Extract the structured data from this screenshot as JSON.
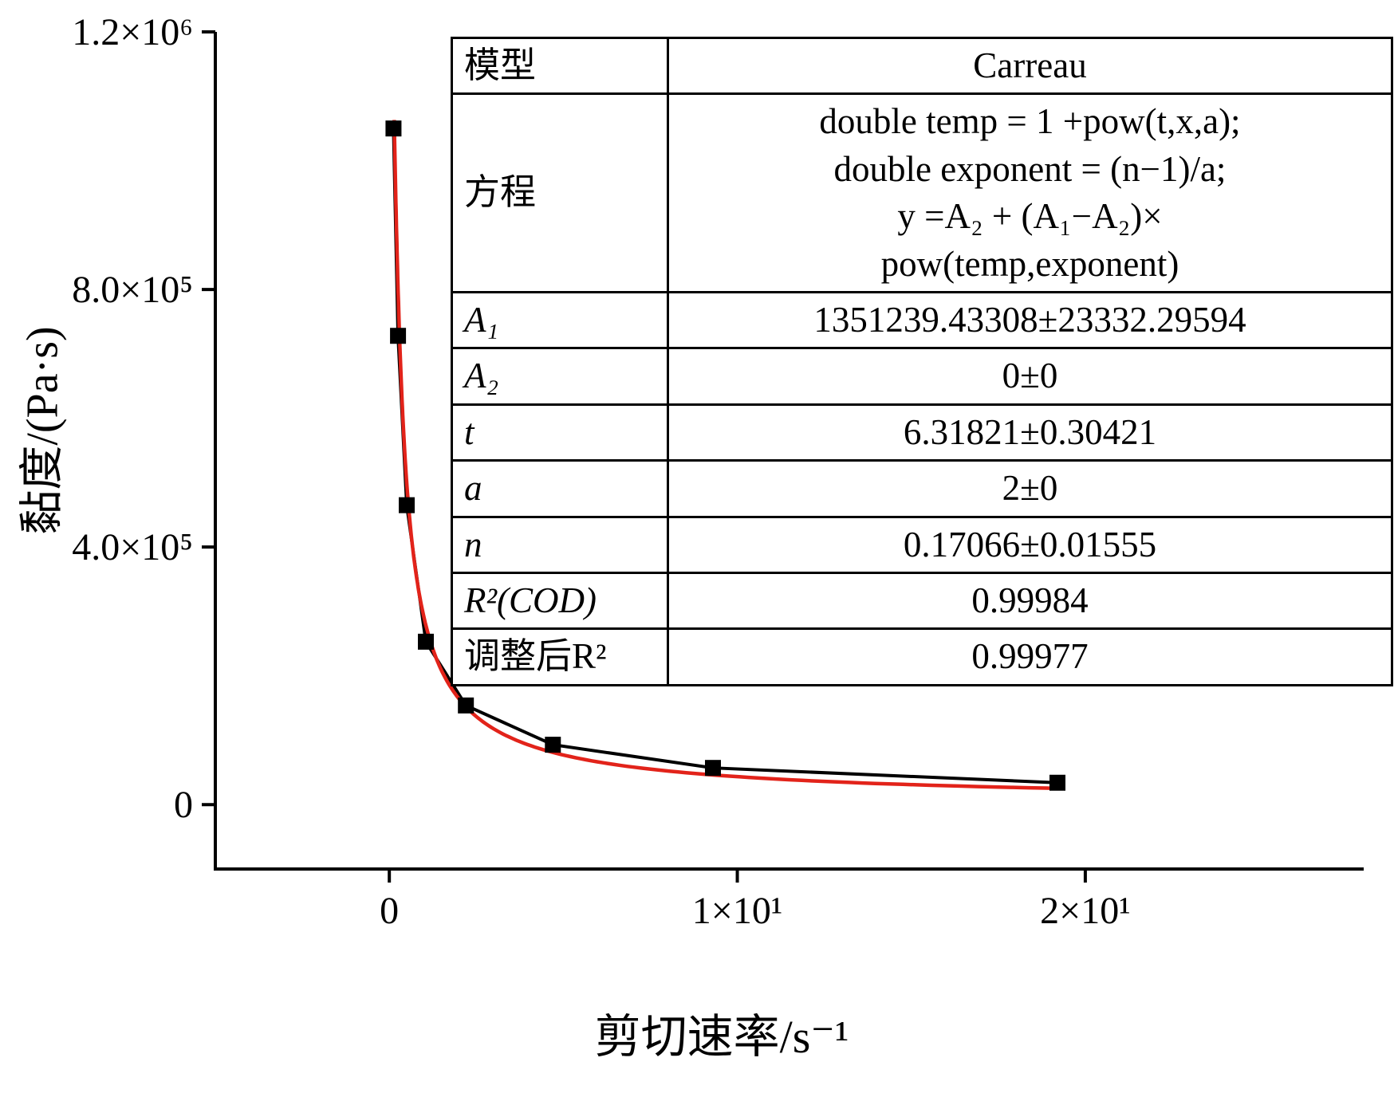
{
  "colors": {
    "axis": "#000000",
    "data_series": "#000000",
    "fit_curve": "#e2231a",
    "table_border": "#000000",
    "background": "#ffffff"
  },
  "table": {
    "rows": [
      {
        "label": "模型",
        "label_italic": false,
        "value": "Carreau"
      },
      {
        "label": "方程",
        "label_italic": false,
        "lines": [
          "double temp = 1 +pow(t,x,a);",
          "double exponent = (n−1)/a;",
          "y =A₂ + (A₁−A₂)×",
          "pow(temp,exponent)"
        ]
      },
      {
        "label": "A₁",
        "label_italic": true,
        "value": "1351239.43308±23332.29594"
      },
      {
        "label": "A₂",
        "label_italic": true,
        "value": "0±0"
      },
      {
        "label": "t",
        "label_italic": true,
        "value": "6.31821±0.30421"
      },
      {
        "label": "a",
        "label_italic": true,
        "value": "2±0"
      },
      {
        "label": "n",
        "label_italic": true,
        "value": "0.17066±0.01555"
      },
      {
        "label": "R²(COD)",
        "label_italic": true,
        "value": "0.99984"
      },
      {
        "label": "调整后R²",
        "label_italic": false,
        "value": "0.99977"
      }
    ]
  },
  "chart_data": {
    "type": "scatter",
    "title": "",
    "xlabel": "剪切速率/s⁻¹",
    "ylabel": "黏度/(Pa·s)",
    "xlim": [
      -5,
      28
    ],
    "ylim": [
      -100000,
      1200000
    ],
    "grid": false,
    "legend": "none",
    "xticks": [
      {
        "v": 0,
        "label": "0"
      },
      {
        "v": 10,
        "label": "1×10¹"
      },
      {
        "v": 20,
        "label": "2×10¹"
      }
    ],
    "yticks": [
      {
        "v": 0,
        "label": "0"
      },
      {
        "v": 400000,
        "label": "4.0×10⁵"
      },
      {
        "v": 800000,
        "label": "8.0×10⁵"
      },
      {
        "v": 1200000,
        "label": "1.2×10⁶"
      }
    ],
    "series": [
      {
        "name": "measured-viscosity",
        "kind": "line+marker",
        "marker": "square",
        "color": "#000000",
        "x": [
          0.12,
          0.25,
          0.5,
          1.05,
          2.2,
          4.7,
          9.3,
          19.2
        ],
        "y": [
          1050000,
          728000,
          465000,
          253000,
          154000,
          93000,
          57000,
          34000
        ]
      },
      {
        "name": "carreau-fit",
        "kind": "fit-curve",
        "model": "carreau",
        "color": "#e2231a",
        "x_range": [
          0.14,
          19.4
        ],
        "params": {
          "A1": 1351239.43308,
          "A2": 0,
          "t": 6.31821,
          "a": 2,
          "n": 0.17066
        }
      }
    ]
  }
}
